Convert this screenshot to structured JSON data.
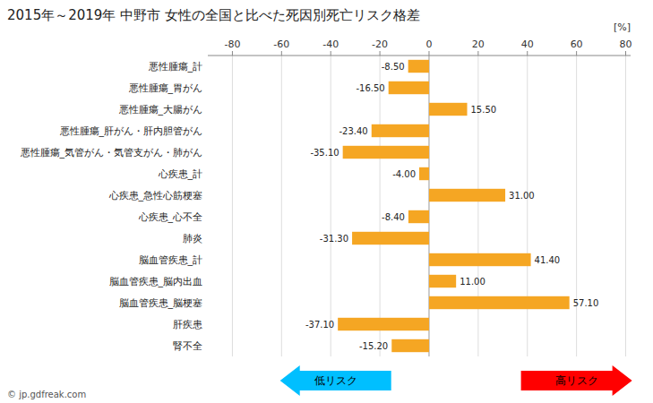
{
  "chart_data": {
    "type": "bar",
    "orientation": "horizontal",
    "title": "2015年～2019年 中野市 女性の全国と比べた死因別死亡リスク格差",
    "xlabel": "[%]",
    "categories": [
      "悪性腫瘍_計",
      "悪性腫瘍_胃がん",
      "悪性腫瘍_大腸がん",
      "悪性腫瘍_肝がん・肝内胆管がん",
      "悪性腫瘍_気管がん・気管支がん・肺がん",
      "心疾患_計",
      "心疾患_急性心筋梗塞",
      "心疾患_心不全",
      "肺炎",
      "脳血管疾患_計",
      "脳血管疾患_脳内出血",
      "脳血管疾患_脳梗塞",
      "肝疾患",
      "腎不全"
    ],
    "values": [
      -8.5,
      -16.5,
      15.5,
      -23.4,
      -35.1,
      -4.0,
      31.0,
      -8.4,
      -31.3,
      41.4,
      11.0,
      57.1,
      -37.1,
      -15.2
    ],
    "value_labels": [
      "-8.50",
      "-16.50",
      "15.50",
      "-23.40",
      "-35.10",
      "-4.00",
      "31.00",
      "-8.40",
      "-31.30",
      "41.40",
      "11.00",
      "57.10",
      "-37.10",
      "-15.20"
    ],
    "data_labels": true,
    "color": "#F5A623",
    "xlim": [
      -90,
      82
    ],
    "xticks": [
      -80,
      -60,
      -40,
      -20,
      0,
      20,
      40,
      60,
      80
    ],
    "grid": true,
    "annotations": [
      {
        "text": "低リスク",
        "color": "#00BFFF"
      },
      {
        "text": "高リスク",
        "color": "#FF0000"
      },
      {
        "text": "© jp.gdfreak.com"
      }
    ]
  }
}
